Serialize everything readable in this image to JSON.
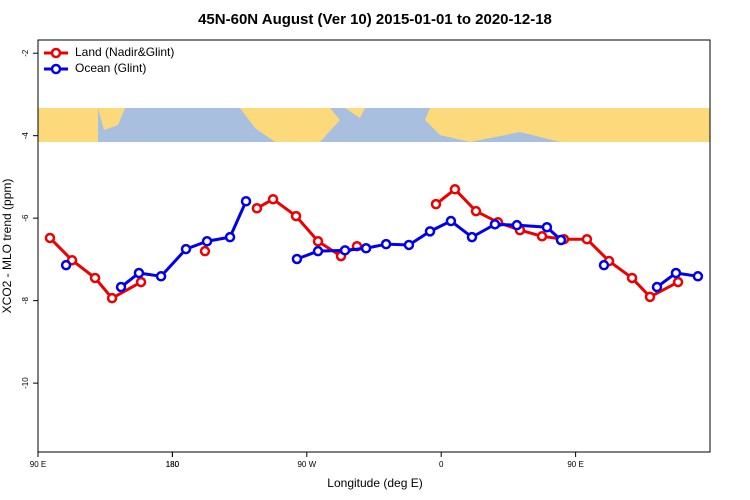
{
  "chart_data": {
    "type": "line",
    "title": "45N-60N August (Ver 10)   2015-01-01 to 2020-12-18",
    "x_label": "Longitude (deg E)",
    "y_label": "XCO2 - MLO trend (ppm)",
    "xlim": [
      90,
      540
    ],
    "xticks": [
      {
        "value": 90,
        "label": "90 E"
      },
      180,
      {
        "value": 270,
        "label": "90 W"
      },
      {
        "value": 360,
        "label": "0"
      },
      {
        "value": 450,
        "label": "90 E"
      },
      180
    ],
    "ylim": [
      -11.67,
      -1.68
    ],
    "yticks": [
      -2,
      -4,
      -6,
      -8,
      -10
    ],
    "legend": "top-left",
    "series": [
      {
        "name": "Land (Nadir&Glint)",
        "color": "#ee0000",
        "x": [
          98.0,
          112.8,
          128.2,
          139.6,
          159.0,
          null,
          201.8,
          null,
          236.6,
          247.4,
          262.8,
          277.5,
          292.9,
          303.6,
          null,
          356.5,
          369.2,
          383.3,
          398.0,
          412.7,
          427.5,
          442.2,
          457.6,
          472.4,
          487.8,
          499.8,
          518.6
        ],
        "values": [
          -6.48,
          -7.02,
          -7.45,
          -7.94,
          -7.55,
          null,
          -6.8,
          null,
          -5.76,
          -5.54,
          -5.95,
          -6.56,
          -6.92,
          -6.68,
          null,
          -5.66,
          -5.3,
          -5.83,
          -6.1,
          -6.29,
          -6.44,
          -6.51,
          -6.51,
          -7.04,
          -7.45,
          -7.91,
          -7.55
        ]
      },
      {
        "name": "Ocean (Glint)",
        "color": "#0000ee",
        "x": [
          108.8,
          null,
          145.6,
          157.6,
          172.4,
          189.1,
          203.2,
          218.6,
          229.3,
          null,
          263.4,
          277.5,
          295.6,
          309.7,
          323.1,
          338.4,
          352.5,
          366.5,
          380.6,
          396.0,
          410.7,
          430.8,
          440.2,
          null,
          469.0,
          null,
          504.5,
          517.2,
          531.9
        ],
        "values": [
          -7.14,
          null,
          -7.67,
          -7.33,
          -7.41,
          -6.75,
          -6.56,
          -6.46,
          -5.59,
          null,
          -6.99,
          -6.8,
          -6.78,
          -6.73,
          -6.63,
          -6.65,
          -6.32,
          -6.07,
          -6.46,
          -6.15,
          -6.17,
          -6.22,
          -6.53,
          null,
          -7.14,
          null,
          -7.67,
          -7.33,
          -7.41
        ]
      }
    ]
  }
}
